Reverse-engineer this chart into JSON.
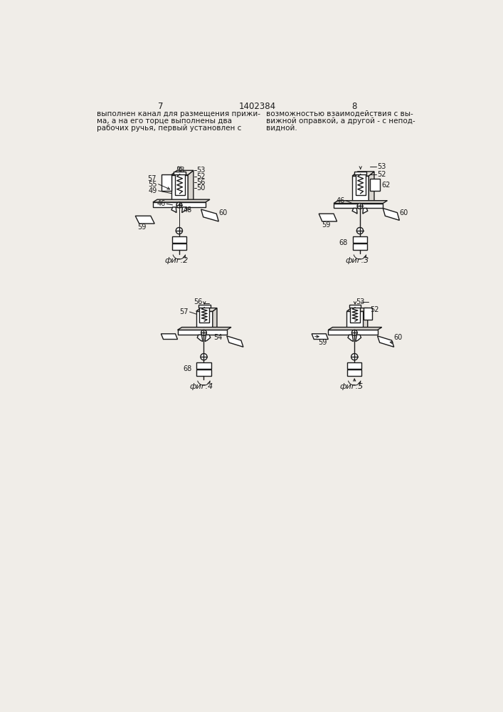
{
  "page_width": 7.07,
  "page_height": 10.0,
  "bg_color": "#f0ede8",
  "line_color": "#1a1a1a",
  "text_color": "#1a1a1a",
  "header_text_left": "выполнен канал для размещения прижи-\nма, а на его торце выполнены два\nрабочих ручья, первый установлен с",
  "header_text_right": "возможностью взаимодействия с вы-\nвижной оправкой, а другой - с непод-\nвидной.",
  "page_num_left": "7",
  "page_num_center": "1402384",
  "page_num_right": "8",
  "fig2_label": "фиг.2",
  "fig3_label": "фиг.3",
  "fig4_label": "фиг.4",
  "fig5_label": "фиг.5"
}
